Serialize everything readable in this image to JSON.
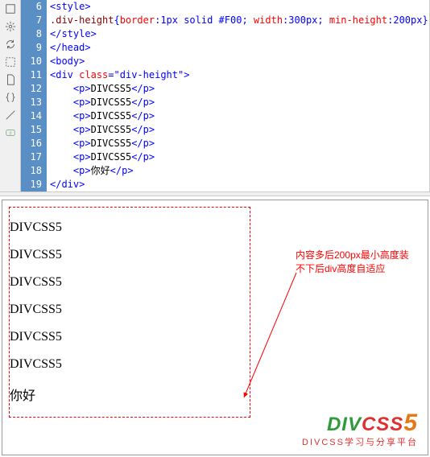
{
  "editor": {
    "line_start": 6,
    "lines": [
      {
        "n": 6,
        "html": "<span class='t-punc'>&lt;</span><span class='t-tag'>style</span><span class='t-punc'>&gt;</span>"
      },
      {
        "n": 7,
        "html": "<span class='t-sel'>.div-height</span><span class='t-punc'>{</span><span class='t-prop'>border</span><span class='t-punc'>:</span><span class='t-val'>1px solid #F00</span><span class='t-punc'>; </span><span class='t-prop'>width</span><span class='t-punc'>:</span><span class='t-val'>300px</span><span class='t-punc'>; </span><span class='t-prop'>min-height</span><span class='t-punc'>:</span><span class='t-val'>200px</span><span class='t-punc'>}</span>"
      },
      {
        "n": 8,
        "html": "<span class='t-punc'>&lt;/</span><span class='t-tag'>style</span><span class='t-punc'>&gt;</span>"
      },
      {
        "n": 9,
        "html": "<span class='t-punc'>&lt;/</span><span class='t-tag'>head</span><span class='t-punc'>&gt;</span>"
      },
      {
        "n": 10,
        "html": "<span class='t-punc'>&lt;</span><span class='t-tag'>body</span><span class='t-punc'>&gt;</span>"
      },
      {
        "n": 11,
        "html": "<span class='t-punc'>&lt;</span><span class='t-tag'>div</span> <span class='t-attr'>class</span><span class='t-punc'>=</span><span class='t-val'>\"div-height\"</span><span class='t-punc'>&gt;</span>"
      },
      {
        "n": 12,
        "html": "    <span class='t-punc'>&lt;</span><span class='t-tag'>p</span><span class='t-punc'>&gt;</span><span class='t-txt'>DIVCSS5</span><span class='t-punc'>&lt;/</span><span class='t-tag'>p</span><span class='t-punc'>&gt;</span>"
      },
      {
        "n": 13,
        "html": "    <span class='t-punc'>&lt;</span><span class='t-tag'>p</span><span class='t-punc'>&gt;</span><span class='t-txt'>DIVCSS5</span><span class='t-punc'>&lt;/</span><span class='t-tag'>p</span><span class='t-punc'>&gt;</span>"
      },
      {
        "n": 14,
        "html": "    <span class='t-punc'>&lt;</span><span class='t-tag'>p</span><span class='t-punc'>&gt;</span><span class='t-txt'>DIVCSS5</span><span class='t-punc'>&lt;/</span><span class='t-tag'>p</span><span class='t-punc'>&gt;</span>"
      },
      {
        "n": 15,
        "html": "    <span class='t-punc'>&lt;</span><span class='t-tag'>p</span><span class='t-punc'>&gt;</span><span class='t-txt'>DIVCSS5</span><span class='t-punc'>&lt;/</span><span class='t-tag'>p</span><span class='t-punc'>&gt;</span>"
      },
      {
        "n": 16,
        "html": "    <span class='t-punc'>&lt;</span><span class='t-tag'>p</span><span class='t-punc'>&gt;</span><span class='t-txt'>DIVCSS5</span><span class='t-punc'>&lt;/</span><span class='t-tag'>p</span><span class='t-punc'>&gt;</span>"
      },
      {
        "n": 17,
        "html": "    <span class='t-punc'>&lt;</span><span class='t-tag'>p</span><span class='t-punc'>&gt;</span><span class='t-txt'>DIVCSS5</span><span class='t-punc'>&lt;/</span><span class='t-tag'>p</span><span class='t-punc'>&gt;</span>"
      },
      {
        "n": 18,
        "html": "    <span class='t-punc'>&lt;</span><span class='t-tag'>p</span><span class='t-punc'>&gt;</span><span class='t-txt'>你好</span><span class='t-punc'>&lt;/</span><span class='t-tag'>p</span><span class='t-punc'>&gt;</span>"
      },
      {
        "n": 19,
        "html": "<span class='t-punc'>&lt;/</span><span class='t-tag'>div</span><span class='t-punc'>&gt;</span>"
      }
    ]
  },
  "preview": {
    "items": [
      "DIVCSS5",
      "DIVCSS5",
      "DIVCSS5",
      "DIVCSS5",
      "DIVCSS5",
      "DIVCSS5",
      "你好"
    ],
    "annotation_l1": "内容多后200px最小高度装",
    "annotation_l2": "不下后div高度自适应"
  },
  "logo": {
    "div": "DIV",
    "css": "CSS",
    "five": "5",
    "sub": "DIVCSS学习与分享平台"
  },
  "colors": {
    "gutter_bg": "#5a8fc5",
    "annotation": "#f00",
    "box_border": "#f00"
  }
}
